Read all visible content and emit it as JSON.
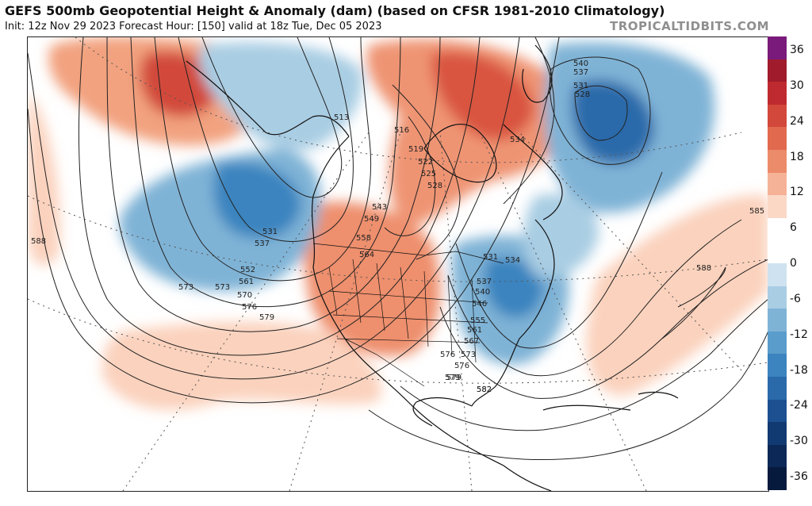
{
  "header": {
    "title": "GEFS 500mb Geopotential Height & Anomaly (dam) (based on CFSR 1981-2010 Climatology)",
    "subtitle": "Init: 12z Nov 29 2023   Forecast Hour: [150]   valid at 18z Tue, Dec 05 2023",
    "brand": "TROPICALTIDBITS.COM"
  },
  "colorbar": {
    "labels": [
      "36",
      "30",
      "24",
      "18",
      "12",
      "6",
      "0",
      "-6",
      "-12",
      "-18",
      "-24",
      "-30",
      "-36"
    ],
    "colors": [
      "#7a1a7a",
      "#a01c2c",
      "#be2a2f",
      "#d2483a",
      "#e16a4e",
      "#ec8b6a",
      "#f5b297",
      "#fbd8c6",
      "#ffffff",
      "#ffffff",
      "#cfe2ef",
      "#a9cde3",
      "#7fb3d6",
      "#5a9ccb",
      "#3b84bf",
      "#2a6aaa",
      "#1d5090",
      "#123a72",
      "#0b2857",
      "#061a3d"
    ]
  },
  "contour_labels": {
    "western_atlantic_ridge": [
      "585",
      "588"
    ],
    "subtropical": [
      "588",
      "582",
      "579",
      "576",
      "573"
    ],
    "pacific_trough": [
      "531",
      "537",
      "552",
      "561",
      "570",
      "573",
      "576",
      "579"
    ],
    "western_ridge": [
      "543",
      "549",
      "558",
      "564"
    ],
    "canada": [
      "513",
      "516",
      "519",
      "522",
      "525",
      "528",
      "534"
    ],
    "eastern_trough": [
      "531",
      "534",
      "537",
      "540",
      "546",
      "555",
      "561",
      "567",
      "573",
      "576",
      "579",
      "582"
    ],
    "atlantic_low": [
      "540",
      "537",
      "531",
      "528"
    ]
  }
}
